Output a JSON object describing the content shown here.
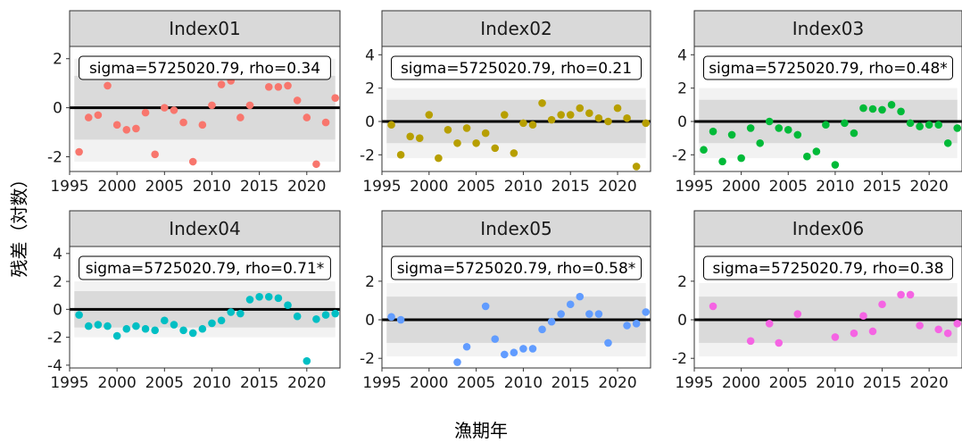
{
  "figure": {
    "ylabel": "残差（対数）",
    "xlabel": "漁期年"
  },
  "colors": {
    "strip_bg": "#d9d9d9",
    "band_outer": "#f2f2f2",
    "band_inner": "#dadada",
    "zero_line": "#000000"
  },
  "chart_data": [
    {
      "type": "scatter",
      "title": "Index01",
      "annotation": "sigma=5725020.79, rho=0.34",
      "color": "#f8766d",
      "xlim": [
        1995,
        2023.5
      ],
      "xticks": [
        1995,
        2000,
        2005,
        2010,
        2015,
        2020
      ],
      "ylim": [
        -2.6,
        2.5
      ],
      "yticks": [
        -2,
        0,
        2
      ],
      "band_outer": [
        -2.2,
        2.0
      ],
      "band_inner": [
        -1.3,
        1.3
      ],
      "x": [
        1996,
        1997,
        1998,
        1999,
        2000,
        2001,
        2002,
        2003,
        2004,
        2005,
        2006,
        2007,
        2008,
        2009,
        2010,
        2011,
        2012,
        2013,
        2014,
        2015,
        2016,
        2017,
        2018,
        2019,
        2020,
        2021,
        2022,
        2023
      ],
      "y": [
        -1.8,
        -0.4,
        -0.3,
        0.9,
        -0.7,
        -0.9,
        -0.85,
        -0.2,
        -1.9,
        0.0,
        -0.1,
        -0.6,
        -2.2,
        -0.7,
        0.1,
        0.95,
        1.1,
        -0.4,
        0.1,
        1.6,
        0.85,
        0.85,
        0.9,
        0.3,
        -0.4,
        -2.3,
        -0.6,
        0.4
      ]
    },
    {
      "type": "scatter",
      "title": "Index02",
      "annotation": "sigma=5725020.79, rho=0.21",
      "color": "#b79f00",
      "xlim": [
        1995,
        2023.5
      ],
      "xticks": [
        1995,
        2000,
        2005,
        2010,
        2015,
        2020
      ],
      "ylim": [
        -3.0,
        4.5
      ],
      "yticks": [
        -2,
        0,
        2,
        4
      ],
      "band_outer": [
        -2.2,
        2.0
      ],
      "band_inner": [
        -1.3,
        1.3
      ],
      "x": [
        1996,
        1997,
        1998,
        1999,
        2000,
        2001,
        2002,
        2003,
        2004,
        2005,
        2006,
        2007,
        2008,
        2009,
        2010,
        2011,
        2012,
        2013,
        2014,
        2015,
        2016,
        2017,
        2018,
        2019,
        2020,
        2021,
        2022,
        2023
      ],
      "y": [
        -0.2,
        -2.0,
        -0.9,
        -1.0,
        0.4,
        -2.2,
        -0.5,
        -1.3,
        -0.4,
        -1.3,
        -0.7,
        -1.6,
        0.4,
        -1.9,
        -0.1,
        -0.2,
        1.1,
        0.1,
        0.4,
        0.4,
        0.8,
        0.5,
        0.2,
        0.0,
        0.8,
        0.2,
        -2.7,
        -0.1
      ]
    },
    {
      "type": "scatter",
      "title": "Index03",
      "annotation": "sigma=5725020.79, rho=0.48*",
      "color": "#00ba38",
      "xlim": [
        1995,
        2023.5
      ],
      "xticks": [
        1995,
        2000,
        2005,
        2010,
        2015,
        2020
      ],
      "ylim": [
        -3.0,
        4.5
      ],
      "yticks": [
        -2,
        0,
        2,
        4
      ],
      "band_outer": [
        -2.2,
        2.0
      ],
      "band_inner": [
        -1.3,
        1.3
      ],
      "x": [
        1996,
        1997,
        1998,
        1999,
        2000,
        2001,
        2002,
        2003,
        2004,
        2005,
        2006,
        2007,
        2008,
        2009,
        2010,
        2011,
        2012,
        2013,
        2014,
        2015,
        2016,
        2017,
        2018,
        2019,
        2020,
        2021,
        2022,
        2023
      ],
      "y": [
        -1.7,
        -0.6,
        -2.4,
        -0.8,
        -2.2,
        -0.4,
        -1.3,
        0.0,
        -0.4,
        -0.5,
        -0.8,
        -2.1,
        -1.8,
        -0.2,
        -2.6,
        -0.1,
        -0.7,
        0.8,
        0.75,
        0.7,
        1.0,
        0.6,
        -0.1,
        -0.3,
        -0.2,
        -0.2,
        -1.3,
        -0.4
      ]
    },
    {
      "type": "scatter",
      "title": "Index04",
      "annotation": "sigma=5725020.79, rho=0.71*",
      "color": "#00bfc4",
      "xlim": [
        1995,
        2023.5
      ],
      "xticks": [
        1995,
        2000,
        2005,
        2010,
        2015,
        2020
      ],
      "ylim": [
        -4.2,
        4.5
      ],
      "yticks": [
        -4,
        -2,
        0,
        2,
        4
      ],
      "band_outer": [
        -2.0,
        2.0
      ],
      "band_inner": [
        -1.3,
        1.3
      ],
      "x": [
        1996,
        1997,
        1998,
        1999,
        2000,
        2001,
        2002,
        2003,
        2004,
        2005,
        2006,
        2007,
        2008,
        2009,
        2010,
        2011,
        2012,
        2013,
        2014,
        2015,
        2016,
        2017,
        2018,
        2019,
        2020,
        2021,
        2022,
        2023
      ],
      "y": [
        -0.4,
        -1.2,
        -1.1,
        -1.2,
        -1.9,
        -1.4,
        -1.2,
        -1.4,
        -1.5,
        -0.8,
        -1.1,
        -1.5,
        -1.7,
        -1.4,
        -1.0,
        -0.8,
        -0.2,
        -0.3,
        0.7,
        0.9,
        0.9,
        0.8,
        0.3,
        -0.5,
        -3.7,
        -0.7,
        -0.4,
        -0.3
      ]
    },
    {
      "type": "scatter",
      "title": "Index05",
      "annotation": "sigma=5725020.79, rho=0.58*",
      "color": "#619cff",
      "xlim": [
        1995,
        2023.5
      ],
      "xticks": [
        1995,
        2000,
        2005,
        2010,
        2015,
        2020
      ],
      "ylim": [
        -2.5,
        3.8
      ],
      "yticks": [
        -2,
        0,
        2
      ],
      "band_outer": [
        -1.9,
        1.9
      ],
      "band_inner": [
        -1.2,
        1.2
      ],
      "x": [
        1996,
        1997,
        2003,
        2004,
        2006,
        2007,
        2008,
        2009,
        2010,
        2011,
        2012,
        2013,
        2014,
        2015,
        2016,
        2017,
        2018,
        2019,
        2021,
        2022,
        2023
      ],
      "y": [
        0.15,
        0.0,
        -2.2,
        -1.4,
        0.7,
        -1.0,
        -1.8,
        -1.7,
        -1.5,
        -1.5,
        -0.5,
        -0.1,
        0.3,
        0.8,
        1.2,
        0.3,
        0.3,
        -1.2,
        -0.3,
        -0.2,
        0.4
      ]
    },
    {
      "type": "scatter",
      "title": "Index06",
      "annotation": "sigma=5725020.79, rho=0.38",
      "color": "#f564e3",
      "xlim": [
        1995,
        2023.5
      ],
      "xticks": [
        1995,
        2000,
        2005,
        2010,
        2015,
        2020
      ],
      "ylim": [
        -2.5,
        3.8
      ],
      "yticks": [
        -2,
        0,
        2
      ],
      "band_outer": [
        -1.9,
        1.9
      ],
      "band_inner": [
        -1.2,
        1.2
      ],
      "x": [
        1997,
        2001,
        2003,
        2004,
        2006,
        2010,
        2012,
        2013,
        2014,
        2015,
        2016,
        2017,
        2018,
        2019,
        2021,
        2022,
        2023
      ],
      "y": [
        0.7,
        -1.1,
        -0.2,
        -1.2,
        0.3,
        -0.9,
        -0.7,
        0.2,
        -0.6,
        0.8,
        2.5,
        1.3,
        1.3,
        -0.3,
        -0.5,
        -0.7,
        -0.2
      ]
    }
  ]
}
